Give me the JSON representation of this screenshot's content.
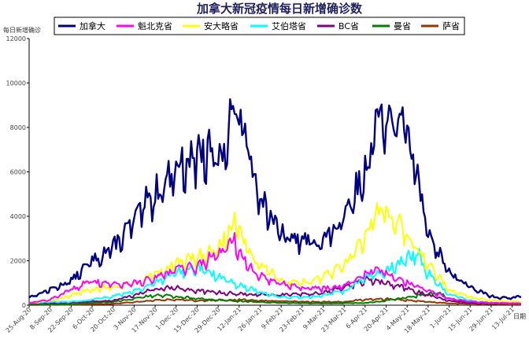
{
  "chart_data": {
    "type": "line",
    "title": "加拿大新冠疫情每日新增确诊数",
    "ylabel": "每日新增确诊",
    "xlabel": "日期",
    "ylim": [
      0,
      12000
    ],
    "yticks": [
      0,
      2000,
      4000,
      6000,
      8000,
      10000,
      12000
    ],
    "x_start": "2020-08-25",
    "x_end": "2021-07-19",
    "xticks": [
      "25-Aug-20",
      "8-Sep-20",
      "22-Sep-20",
      "6-Oct-20",
      "20-Oct-20",
      "3-Nov-20",
      "17-Nov-20",
      "1-Dec-20",
      "15-Dec-20",
      "29-Dec-20",
      "12-Jan-21",
      "26-Jan-21",
      "9-Feb-21",
      "23-Feb-21",
      "9-Mar-21",
      "23-Mar-21",
      "6-Apr-21",
      "20-Apr-21",
      "4-May-21",
      "18-May-21",
      "1-Jun-21",
      "15-Jun-21",
      "29-Jun-21",
      "13-Jul-21"
    ],
    "xtick_dates": [
      "2020-08-25",
      "2020-09-08",
      "2020-09-22",
      "2020-10-06",
      "2020-10-20",
      "2020-11-03",
      "2020-11-17",
      "2020-12-01",
      "2020-12-15",
      "2020-12-29",
      "2021-01-12",
      "2021-01-26",
      "2021-02-09",
      "2021-02-23",
      "2021-03-09",
      "2021-03-23",
      "2021-04-06",
      "2021-04-20",
      "2021-05-04",
      "2021-05-18",
      "2021-06-01",
      "2021-06-15",
      "2021-06-29",
      "2021-07-13"
    ],
    "grid": false,
    "legend_position": "top",
    "series": [
      {
        "name": "加拿大",
        "color": "#000080",
        "x": [
          "2020-08-25",
          "2020-09-08",
          "2020-09-22",
          "2020-10-06",
          "2020-10-20",
          "2020-11-03",
          "2020-11-17",
          "2020-12-01",
          "2020-12-15",
          "2020-12-29",
          "2021-01-05",
          "2021-01-09",
          "2021-01-12",
          "2021-01-19",
          "2021-01-26",
          "2021-02-09",
          "2021-02-23",
          "2021-03-09",
          "2021-03-23",
          "2021-04-06",
          "2021-04-13",
          "2021-04-17",
          "2021-04-20",
          "2021-04-27",
          "2021-05-04",
          "2021-05-11",
          "2021-05-18",
          "2021-06-01",
          "2021-06-15",
          "2021-06-29",
          "2021-07-13",
          "2021-07-19"
        ],
        "y": [
          350,
          700,
          1100,
          2000,
          2600,
          3800,
          5000,
          6200,
          6800,
          6600,
          7800,
          9000,
          8500,
          6800,
          5000,
          3100,
          2900,
          2900,
          3800,
          6000,
          7800,
          9300,
          8500,
          8300,
          7800,
          5800,
          3300,
          1500,
          800,
          400,
          300,
          450
        ]
      },
      {
        "name": "魁北克省",
        "color": "#ff00ff",
        "x": [
          "2020-08-25",
          "2020-09-08",
          "2020-09-22",
          "2020-10-06",
          "2020-10-20",
          "2020-11-03",
          "2020-11-17",
          "2020-12-01",
          "2020-12-15",
          "2020-12-29",
          "2021-01-05",
          "2021-01-09",
          "2021-01-12",
          "2021-01-19",
          "2021-01-26",
          "2021-02-09",
          "2021-02-23",
          "2021-03-09",
          "2021-03-23",
          "2021-04-06",
          "2021-04-13",
          "2021-04-20",
          "2021-05-04",
          "2021-05-18",
          "2021-06-01",
          "2021-06-15",
          "2021-06-29",
          "2021-07-19"
        ],
        "y": [
          100,
          250,
          700,
          1100,
          950,
          1000,
          1200,
          1600,
          1800,
          2300,
          2700,
          2900,
          2400,
          1700,
          1300,
          1000,
          800,
          750,
          900,
          1400,
          1600,
          1400,
          1000,
          700,
          300,
          150,
          100,
          80
        ]
      },
      {
        "name": "安大略省",
        "color": "#ffff00",
        "x": [
          "2020-08-25",
          "2020-09-08",
          "2020-09-22",
          "2020-10-06",
          "2020-10-20",
          "2020-11-03",
          "2020-11-17",
          "2020-12-01",
          "2020-12-15",
          "2020-12-29",
          "2021-01-05",
          "2021-01-09",
          "2021-01-12",
          "2021-01-19",
          "2021-01-26",
          "2021-02-09",
          "2021-02-23",
          "2021-03-09",
          "2021-03-23",
          "2021-04-06",
          "2021-04-13",
          "2021-04-17",
          "2021-04-20",
          "2021-04-27",
          "2021-05-04",
          "2021-05-11",
          "2021-05-18",
          "2021-06-01",
          "2021-06-15",
          "2021-06-29",
          "2021-07-19"
        ],
        "y": [
          100,
          200,
          450,
          700,
          850,
          1000,
          1400,
          1800,
          2200,
          2600,
          3200,
          3900,
          3300,
          2300,
          1800,
          1100,
          1000,
          1300,
          1800,
          3000,
          4100,
          4700,
          4200,
          3800,
          3200,
          2500,
          1900,
          700,
          350,
          200,
          150
        ]
      },
      {
        "name": "艾伯塔省",
        "color": "#00ffff",
        "x": [
          "2020-08-25",
          "2020-09-08",
          "2020-09-22",
          "2020-10-06",
          "2020-10-20",
          "2020-11-03",
          "2020-11-17",
          "2020-12-01",
          "2020-12-15",
          "2020-12-29",
          "2021-01-12",
          "2021-01-26",
          "2021-02-09",
          "2021-02-23",
          "2021-03-09",
          "2021-03-23",
          "2021-04-06",
          "2021-04-20",
          "2021-05-04",
          "2021-05-11",
          "2021-05-18",
          "2021-06-01",
          "2021-06-15",
          "2021-06-29",
          "2021-07-19"
        ],
        "y": [
          100,
          150,
          150,
          250,
          400,
          650,
          1000,
          1500,
          1700,
          1300,
          900,
          600,
          350,
          350,
          450,
          650,
          1200,
          1600,
          2100,
          2300,
          1400,
          500,
          200,
          100,
          120
        ]
      },
      {
        "name": "BC省",
        "color": "#800080",
        "x": [
          "2020-08-25",
          "2020-09-22",
          "2020-10-20",
          "2020-11-03",
          "2020-11-17",
          "2020-12-01",
          "2020-12-15",
          "2021-01-12",
          "2021-02-09",
          "2021-03-09",
          "2021-03-23",
          "2021-04-06",
          "2021-04-20",
          "2021-05-04",
          "2021-05-18",
          "2021-06-01",
          "2021-06-15",
          "2021-07-19"
        ],
        "y": [
          80,
          120,
          200,
          450,
          750,
          800,
          650,
          500,
          450,
          550,
          800,
          1100,
          1000,
          750,
          450,
          200,
          100,
          80
        ]
      },
      {
        "name": "曼省",
        "color": "#008000",
        "x": [
          "2020-08-25",
          "2020-09-22",
          "2020-10-20",
          "2020-11-03",
          "2020-11-17",
          "2020-12-01",
          "2020-12-15",
          "2021-01-12",
          "2021-02-09",
          "2021-03-09",
          "2021-04-06",
          "2021-04-20",
          "2021-05-04",
          "2021-05-18",
          "2021-05-25",
          "2021-06-01",
          "2021-06-15",
          "2021-07-19"
        ],
        "y": [
          20,
          50,
          150,
          300,
          450,
          400,
          300,
          180,
          100,
          80,
          100,
          200,
          350,
          500,
          550,
          300,
          150,
          60
        ]
      },
      {
        "name": "萨省",
        "color": "#993300",
        "x": [
          "2020-08-25",
          "2020-09-22",
          "2020-10-20",
          "2020-11-17",
          "2020-12-01",
          "2020-12-15",
          "2021-01-12",
          "2021-02-09",
          "2021-03-09",
          "2021-03-23",
          "2021-04-06",
          "2021-04-20",
          "2021-05-04",
          "2021-05-18",
          "2021-06-01",
          "2021-07-19"
        ],
        "y": [
          10,
          20,
          60,
          220,
          250,
          200,
          250,
          180,
          150,
          150,
          250,
          280,
          220,
          150,
          80,
          30
        ]
      }
    ]
  }
}
